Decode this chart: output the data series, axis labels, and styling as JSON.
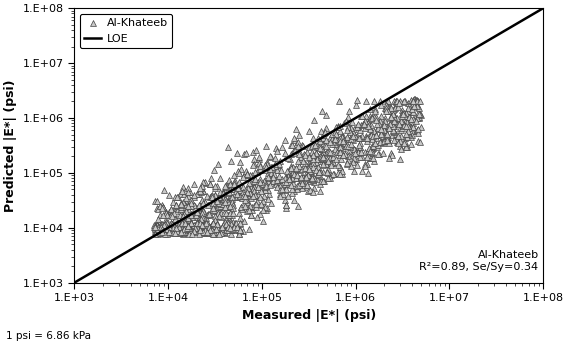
{
  "xlim": [
    1000.0,
    100000000.0
  ],
  "ylim": [
    1000.0,
    100000000.0
  ],
  "xlabel": "Measured |E*| (psi)",
  "ylabel": "Predicted |E*| (psi)",
  "annotation_name": "Al-Khateeb",
  "annotation_stats": "R²=0.89, Se/Sy=0.34",
  "legend_marker_label": "Al-Khateeb",
  "legend_line_label": "LOE",
  "note": "1 psi = 6.86 kPa",
  "marker_color": "#c8c8c8",
  "marker_edge_color": "#444444",
  "line_color": "#000000",
  "background_color": "#ffffff",
  "seed": 42,
  "n_points": 1200
}
